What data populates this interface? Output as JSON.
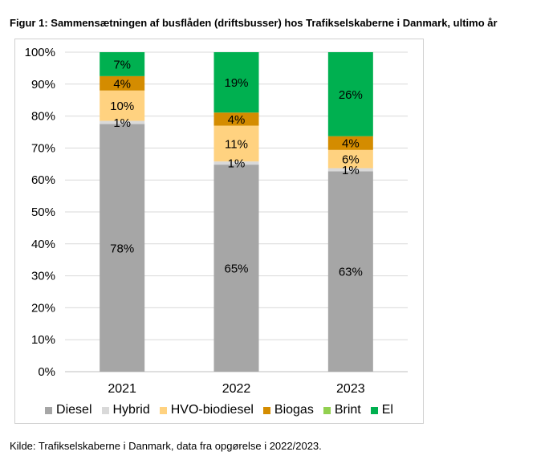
{
  "figure_title": "Figur 1: Sammensætningen af busflåden (driftsbusser) hos Trafikselskaberne i Danmark, ultimo år",
  "source_note": "Kilde: Trafikselskaberne i Danmark, data fra opgørelse i 2022/2023.",
  "chart_data": {
    "type": "bar",
    "stacked": true,
    "categories": [
      "2021",
      "2022",
      "2023"
    ],
    "series": [
      {
        "name": "Diesel",
        "color": "#a6a6a6",
        "values": [
          77.5,
          64.8,
          62.7
        ],
        "labels": [
          "78%",
          "65%",
          "63%"
        ]
      },
      {
        "name": "Hybrid",
        "color": "#d9d9d9",
        "values": [
          1,
          1,
          1
        ],
        "labels": [
          "1%",
          "1%",
          "1%"
        ]
      },
      {
        "name": "HVO-biodiesel",
        "color": "#ffd280",
        "values": [
          9.5,
          11.2,
          5.7
        ],
        "labels": [
          "10%",
          "11%",
          "6%"
        ]
      },
      {
        "name": "Biogas",
        "color": "#d48c00",
        "values": [
          4.5,
          4.1,
          4.3
        ],
        "labels": [
          "4%",
          "4%",
          "4%"
        ]
      },
      {
        "name": "Brint",
        "color": "#92d050",
        "values": [
          0,
          0,
          0
        ],
        "labels": [
          "",
          "",
          ""
        ]
      },
      {
        "name": "El",
        "color": "#00b050",
        "values": [
          7.5,
          18.9,
          26.3
        ],
        "labels": [
          "7%",
          "19%",
          "26%"
        ]
      }
    ],
    "y_ticks": [
      "0%",
      "10%",
      "20%",
      "30%",
      "40%",
      "50%",
      "60%",
      "70%",
      "80%",
      "90%",
      "100%"
    ],
    "ylim": [
      0,
      100
    ],
    "grid": true,
    "legend_position": "bottom",
    "title": "",
    "xlabel": "",
    "ylabel": ""
  }
}
